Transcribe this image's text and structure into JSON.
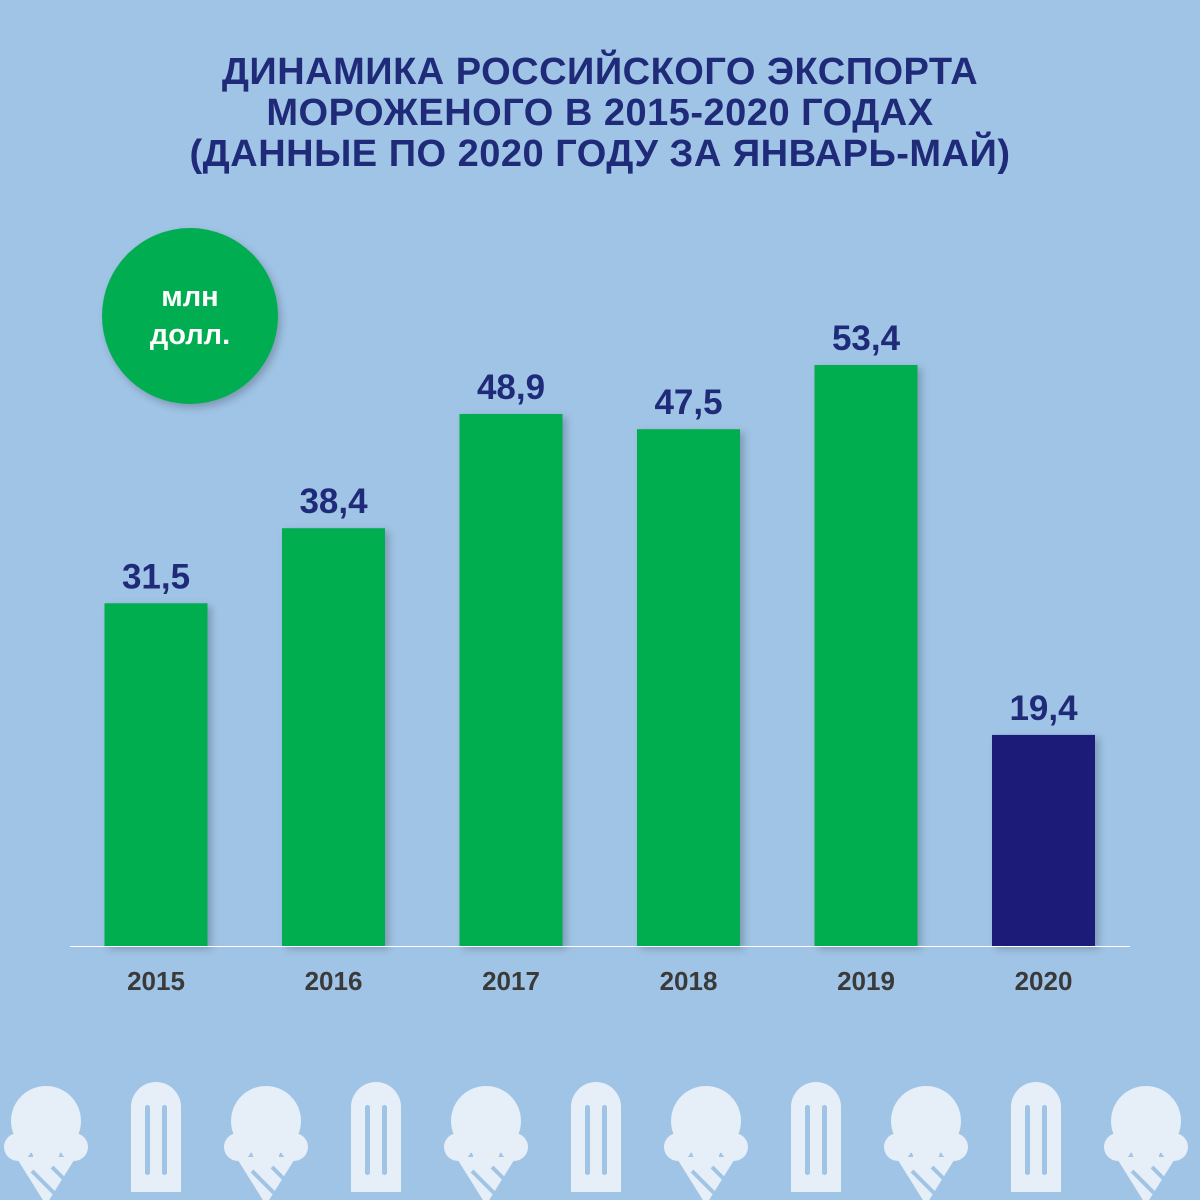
{
  "title": {
    "lines": [
      "ДИНАМИКА РОССИЙСКОГО ЭКСПОРТА",
      "МОРОЖЕНОГО В 2015-2020 ГОДАХ",
      "(ДАННЫЕ ПО 2020 ГОДУ ЗА ЯНВАРЬ-МАЙ)"
    ]
  },
  "unit_badge": {
    "line1": "млн",
    "line2": "долл."
  },
  "colors": {
    "background": "#a0c4e6",
    "bar_green": "#00ad50",
    "bar_highlight": "#1d1f78",
    "text_dark_blue": "#1f2a78",
    "axis_label": "#3a3a3a",
    "icon_fill": "#e6eef8"
  },
  "chart_data": {
    "type": "bar",
    "categories": [
      "2015",
      "2016",
      "2017",
      "2018",
      "2019",
      "2020"
    ],
    "values": [
      31.5,
      38.4,
      48.9,
      47.5,
      53.4,
      19.4
    ],
    "value_labels": [
      "31,5",
      "38,4",
      "48,9",
      "47,5",
      "53,4",
      "19,4"
    ],
    "highlight_category": "2020",
    "title": "ДИНАМИКА РОССИЙСКОГО ЭКСПОРТА МОРОЖЕНОГО В 2015-2020 ГОДАХ (ДАННЫЕ ПО 2020 ГОДУ ЗА ЯНВАРЬ-МАЙ)",
    "ylabel": "млн долл.",
    "xlabel": "",
    "ylim": [
      0,
      53.4
    ],
    "grid": false,
    "legend": "none"
  },
  "footer_icons": [
    "ice-cream-cone-icon",
    "popsicle-icon",
    "ice-cream-cone-icon",
    "popsicle-icon",
    "ice-cream-cone-icon",
    "popsicle-icon",
    "ice-cream-cone-icon",
    "popsicle-icon",
    "ice-cream-cone-icon",
    "popsicle-icon",
    "ice-cream-cone-icon"
  ]
}
